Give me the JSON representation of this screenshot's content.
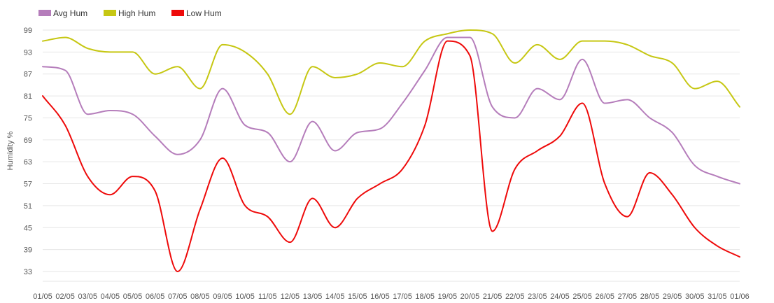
{
  "chart_data": {
    "type": "line",
    "ylabel": "Humidity %",
    "ylim": [
      33,
      99
    ],
    "yticks": [
      99,
      93,
      87,
      81,
      75,
      69,
      63,
      57,
      51,
      45,
      39,
      33
    ],
    "grid": true,
    "legend_position": "top-left",
    "categories": [
      "05/01",
      "05/02",
      "05/03",
      "05/04",
      "05/05",
      "05/06",
      "05/07",
      "05/08",
      "05/09",
      "05/10",
      "05/11",
      "05/12",
      "05/13",
      "05/14",
      "05/15",
      "05/16",
      "05/17",
      "05/18",
      "05/19",
      "05/20",
      "05/21",
      "05/22",
      "05/23",
      "05/24",
      "05/25",
      "05/26",
      "05/27",
      "05/28",
      "05/29",
      "05/30",
      "05/31",
      "06/01"
    ],
    "xtick_labels": [
      "01/05",
      "02/05",
      "03/05",
      "04/05",
      "05/05",
      "06/05",
      "07/05",
      "08/05",
      "09/05",
      "10/05",
      "11/05",
      "12/05",
      "13/05",
      "14/05",
      "15/05",
      "16/05",
      "17/05",
      "18/05",
      "19/05",
      "20/05",
      "21/05",
      "22/05",
      "23/05",
      "24/05",
      "25/05",
      "26/05",
      "27/05",
      "28/05",
      "29/05",
      "30/05",
      "31/05",
      "01/06"
    ],
    "series": [
      {
        "name": "Avg Hum",
        "color": "#b57dbb",
        "values": [
          89,
          88,
          76,
          77,
          76,
          70,
          65,
          69,
          83,
          73,
          71,
          63,
          74,
          66,
          71,
          72,
          79,
          88,
          97,
          97,
          78,
          75,
          83,
          80,
          91,
          79,
          80,
          75,
          71,
          62,
          59,
          57
        ]
      },
      {
        "name": "High Hum",
        "color": "#c6c713",
        "values": [
          96,
          97,
          94,
          93,
          93,
          87,
          89,
          83,
          95,
          93,
          87,
          76,
          89,
          86,
          87,
          90,
          89,
          96,
          98,
          99,
          98,
          90,
          95,
          91,
          96,
          96,
          95,
          92,
          90,
          83,
          85,
          78
        ]
      },
      {
        "name": "Low Hum",
        "color": "#ee0a0a",
        "values": [
          81,
          73,
          59,
          54,
          59,
          55,
          33,
          50,
          64,
          51,
          48,
          41,
          53,
          45,
          53,
          57,
          61,
          73,
          96,
          92,
          44,
          61,
          66,
          70,
          79,
          57,
          48,
          60,
          54,
          45,
          40,
          37
        ]
      }
    ]
  }
}
